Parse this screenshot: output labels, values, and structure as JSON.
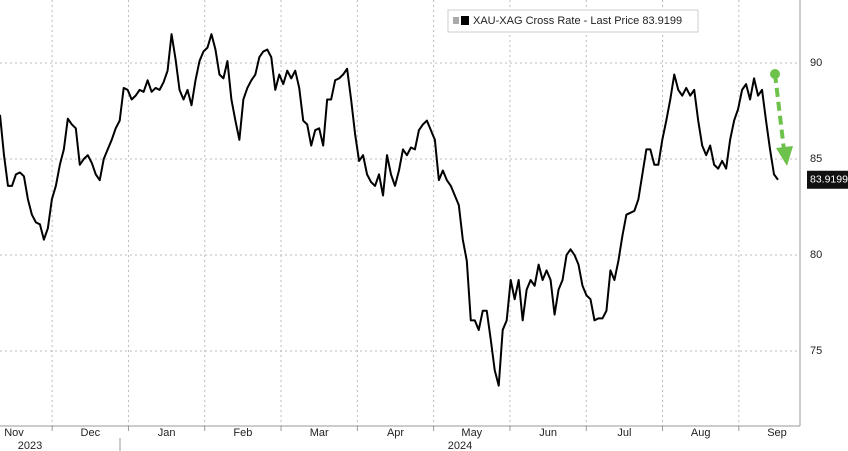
{
  "chart_data": {
    "type": "line",
    "x_tick_labels": [
      "Nov",
      "Dec",
      "Jan",
      "Feb",
      "Mar",
      "Apr",
      "May",
      "Jun",
      "Jul",
      "Aug",
      "Sep"
    ],
    "year_labels": [
      "2023",
      "2024"
    ],
    "series": [
      {
        "name": "XAU-XAG Cross Rate - Last Price 83.9199",
        "color": "#000000",
        "values": [
          87.3,
          85.2,
          83.6,
          83.6,
          84.2,
          84.3,
          84.1,
          82.9,
          82.1,
          81.7,
          81.6,
          80.8,
          81.4,
          82.9,
          83.6,
          84.7,
          85.5,
          87.1,
          86.8,
          86.6,
          84.7,
          85.0,
          85.2,
          84.8,
          84.2,
          83.9,
          85.0,
          85.5,
          86.0,
          86.6,
          87.0,
          88.7,
          88.6,
          88.1,
          88.3,
          88.6,
          88.5,
          89.1,
          88.5,
          88.7,
          88.6,
          89.0,
          89.6,
          91.5,
          90.2,
          88.6,
          88.1,
          88.6,
          87.8,
          89.1,
          90.1,
          90.6,
          90.8,
          91.5,
          90.7,
          89.4,
          89.2,
          90.1,
          88.1,
          87.0,
          86.0,
          88.1,
          88.7,
          89.1,
          89.4,
          90.3,
          90.6,
          90.7,
          90.3,
          88.6,
          89.4,
          88.9,
          89.6,
          89.2,
          89.6,
          88.7,
          87.0,
          86.8,
          85.7,
          86.5,
          86.6,
          85.7,
          88.1,
          88.1,
          89.1,
          89.2,
          89.4,
          89.7,
          88.1,
          86.3,
          84.9,
          85.2,
          84.2,
          83.8,
          83.6,
          84.2,
          83.1,
          85.2,
          84.2,
          83.6,
          84.4,
          85.5,
          85.2,
          85.6,
          85.5,
          86.5,
          86.8,
          87.0,
          86.5,
          86.0,
          83.9,
          84.4,
          83.9,
          83.6,
          83.1,
          82.6,
          80.8,
          79.7,
          76.6,
          76.6,
          76.1,
          77.1,
          77.1,
          75.6,
          74.0,
          73.2,
          76.1,
          76.6,
          78.7,
          77.7,
          78.7,
          76.6,
          78.2,
          78.7,
          78.4,
          79.5,
          78.7,
          79.2,
          78.7,
          76.9,
          78.2,
          78.7,
          80.0,
          80.3,
          80.0,
          79.5,
          78.4,
          77.9,
          77.7,
          76.6,
          76.7,
          76.7,
          77.1,
          79.2,
          78.7,
          79.7,
          81.0,
          82.1,
          82.2,
          82.3,
          82.9,
          84.2,
          85.5,
          85.5,
          84.7,
          84.7,
          86.0,
          87.0,
          88.1,
          89.4,
          88.6,
          88.3,
          88.7,
          88.3,
          88.6,
          87.0,
          85.7,
          85.2,
          85.7,
          84.7,
          84.5,
          84.9,
          84.5,
          86.0,
          87.0,
          87.6,
          88.6,
          88.9,
          88.1,
          89.2,
          88.3,
          88.6,
          87.0,
          85.5,
          84.2,
          83.9199
        ]
      }
    ],
    "ylim": [
      71.15,
      93.28
    ],
    "yticks": [
      75,
      80,
      85,
      90
    ],
    "grid": true
  }
}
